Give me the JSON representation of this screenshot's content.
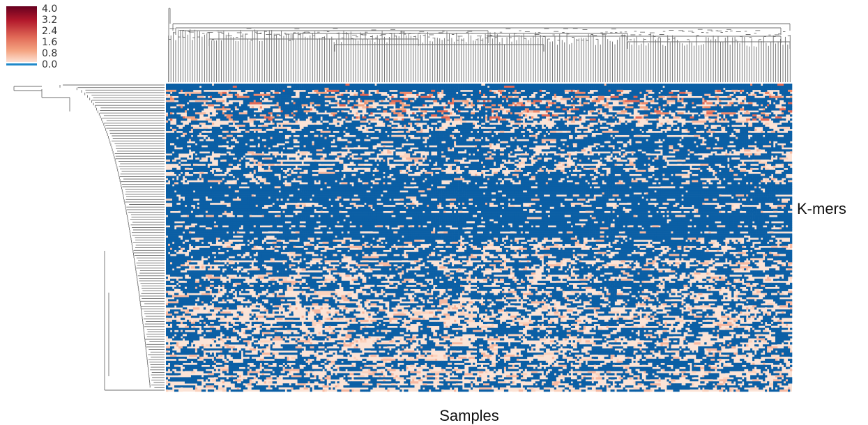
{
  "chart_data": {
    "type": "heatmap",
    "title": "",
    "xlabel": "Samples",
    "ylabel": "K-mers",
    "colorbar": {
      "ticks": [
        "4.0",
        "3.2",
        "2.4",
        "1.6",
        "0.8",
        "0.0"
      ],
      "range": [
        0.0,
        4.0
      ],
      "colors": {
        "high": "#67001f",
        "mid": "#d6604d",
        "low": "#fddbc7",
        "zero": "#0b5fa5"
      },
      "placement": "top-left"
    },
    "dendrograms": {
      "columns": "top",
      "rows": "left",
      "line_color": "#6f6f6f"
    },
    "grid": false
  }
}
